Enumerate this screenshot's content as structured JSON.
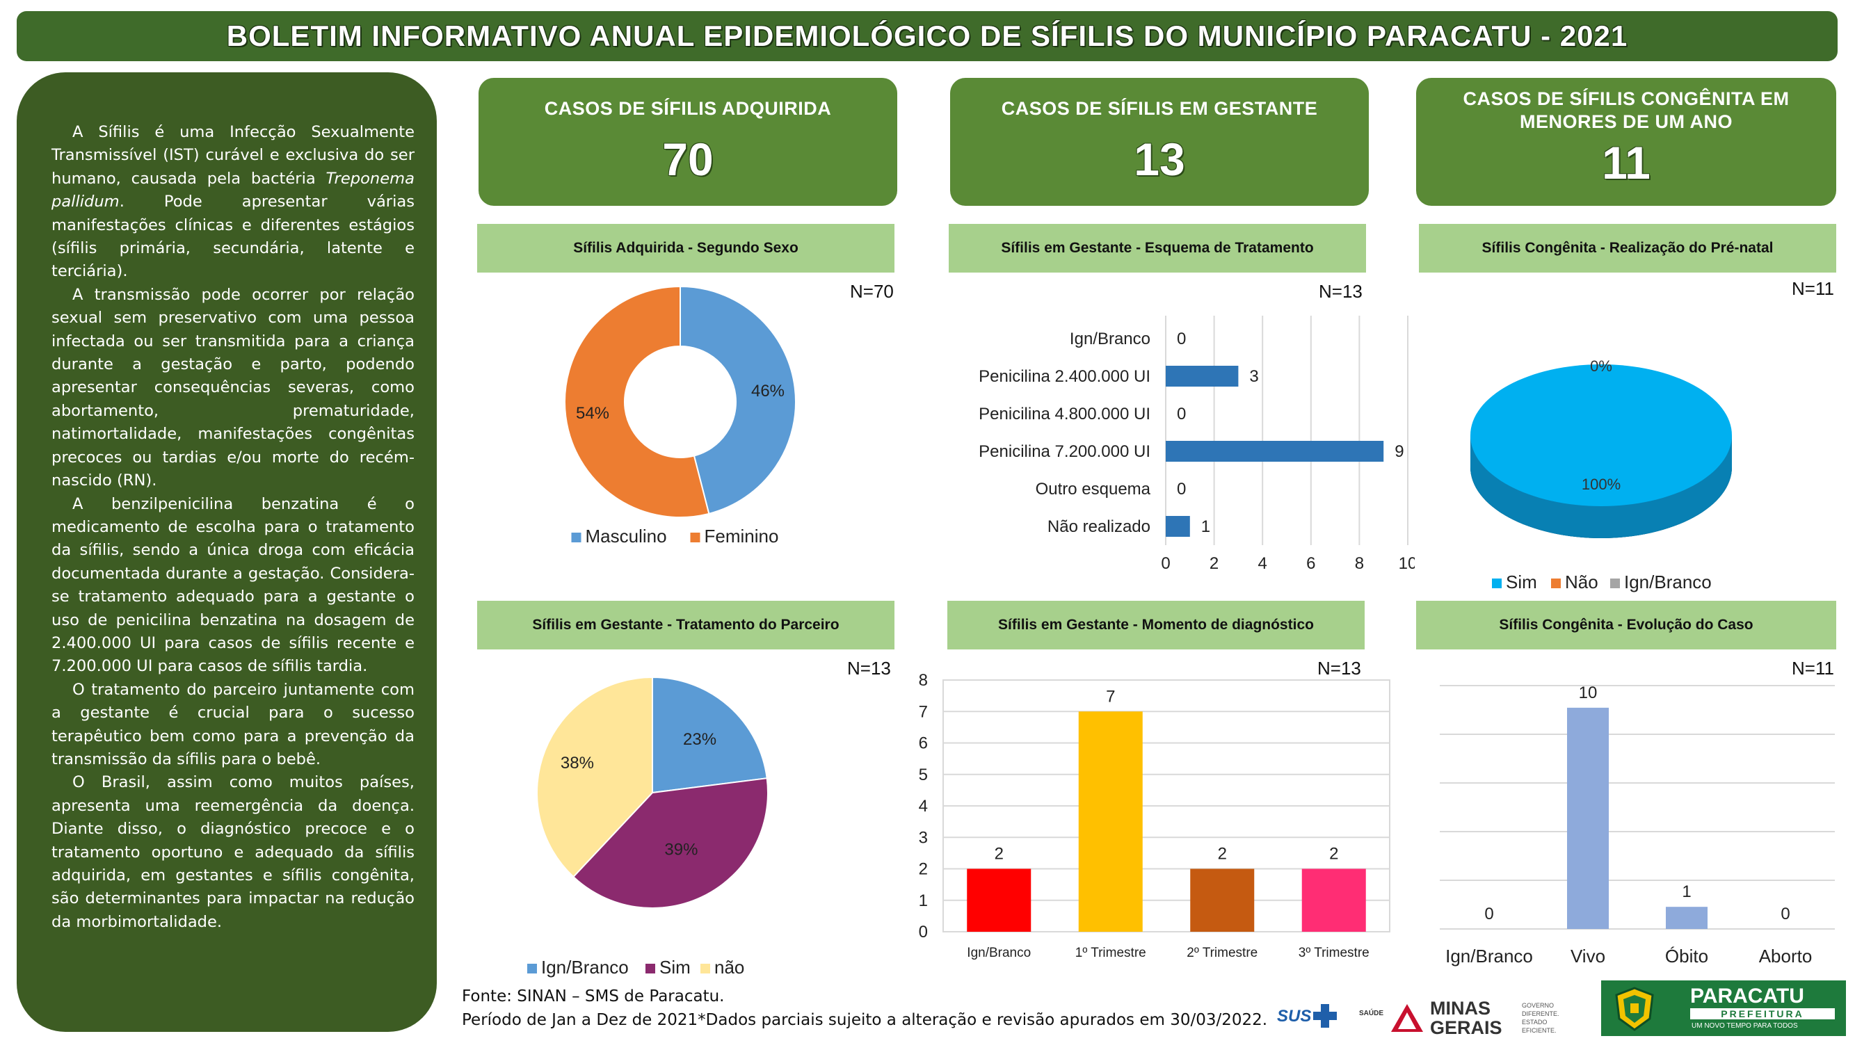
{
  "header": {
    "title": "BOLETIM INFORMATIVO ANUAL EPIDEMIOLÓGICO DE SÍFILIS DO MUNICÍPIO PARACATU - 2021"
  },
  "sidebar": {
    "paragraphs": [
      "A Sífilis é uma Infecção Sexualmente Transmissível (IST) curável e exclusiva do ser humano, causada pela bactéria Treponema pallidum. Pode apresentar várias manifestações clínicas e diferentes estágios (sífilis primária, secundária, latente e terciária).",
      "A transmissão pode ocorrer por relação sexual sem preservativo com uma pessoa infectada ou ser transmitida para a criança durante a gestação e parto, podendo apresentar consequências severas, como abortamento, prematuridade, natimortalidade, manifestações congênitas precoces ou tardias e/ou morte do recém-nascido (RN).",
      "A benzilpenicilina benzatina é o medicamento de escolha para o tratamento da sífilis, sendo a única droga com eficácia documentada durante a gestação. Considera-se tratamento adequado para a gestante o uso de penicilina benzatina na dosagem de 2.400.000 UI para casos de sífilis recente e 7.200.000 UI para casos de sífilis tardia.",
      "O tratamento do parceiro juntamente com a gestante é crucial para o sucesso terapêutico bem como para a prevenção da transmissão da sífilis para o bebê.",
      "O Brasil, assim como muitos países, apresenta uma reemergência da doença. Diante disso, o diagnóstico precoce e o tratamento oportuno e adequado da sífilis adquirida, em gestantes e sífilis congênita, são determinantes para impactar na redução da morbimortalidade."
    ]
  },
  "kpis": [
    {
      "label": "CASOS DE SÍFILIS ADQUIRIDA",
      "value": "70"
    },
    {
      "label": "CASOS DE SÍFILIS EM GESTANTE",
      "value": "13"
    },
    {
      "label": "CASOS DE SÍFILIS CONGÊNITA EM MENORES DE UM ANO",
      "value": "11"
    }
  ],
  "chart_data": [
    {
      "type": "pie",
      "title": "Sífilis Adquirida - Segundo Sexo",
      "n": "N=70",
      "donut": true,
      "categories": [
        "Masculino",
        "Feminino"
      ],
      "values": [
        46,
        54
      ],
      "labels": [
        "46%",
        "54%"
      ],
      "colors": [
        "#5b9bd5",
        "#ed7d31"
      ],
      "legend": "bottom"
    },
    {
      "type": "bar",
      "orientation": "horizontal",
      "title": "Sífilis em Gestante - Esquema de Tratamento",
      "n": "N=13",
      "categories": [
        "Ign/Branco",
        "Penicilina  2.400.000 UI",
        "Penicilina  4.800.000 UI",
        "Penicilina   7.200.000 UI",
        "Outro esquema",
        "Não realizado"
      ],
      "values": [
        0,
        3,
        0,
        9,
        0,
        1
      ],
      "xlim": [
        0,
        10
      ],
      "ticks": [
        0,
        2,
        4,
        6,
        8,
        10
      ],
      "color": "#2e75b6",
      "grid": "vertical"
    },
    {
      "type": "pie",
      "title": "Sífilis Congênita - Realização do Pré-natal",
      "n": "N=11",
      "style3d": true,
      "categories": [
        "Sim",
        "Não",
        "Ign/Branco"
      ],
      "values": [
        100,
        0,
        0
      ],
      "labels": [
        "100%",
        "0%"
      ],
      "colors": [
        "#00b0f0",
        "#ed7d31",
        "#a5a5a5"
      ],
      "legend": "bottom"
    },
    {
      "type": "pie",
      "title": "Sífilis em Gestante - Tratamento do Parceiro",
      "n": "N=13",
      "categories": [
        "Ign/Branco",
        "Sim",
        "não"
      ],
      "values": [
        23,
        39,
        38
      ],
      "labels": [
        "23%",
        "39%",
        "38%"
      ],
      "colors": [
        "#5b9bd5",
        "#8b2a6e",
        "#ffe699"
      ],
      "legend": "bottom"
    },
    {
      "type": "bar",
      "title": "Sífilis em Gestante - Momento de diagnóstico",
      "n": "N=13",
      "categories": [
        "Ign/Branco",
        "1º Trimestre",
        "2º Trimestre",
        "3º Trimestre"
      ],
      "values": [
        2,
        7,
        2,
        2
      ],
      "ylim": [
        0,
        8
      ],
      "ticks": [
        0,
        1,
        2,
        3,
        4,
        5,
        6,
        7,
        8
      ],
      "colors": [
        "#ff0000",
        "#ffc000",
        "#c55a11",
        "#ff2d74"
      ],
      "grid": "horizontal"
    },
    {
      "type": "bar",
      "title": "Sífilis Congênita - Evolução do Caso",
      "n": "N=11",
      "categories": [
        "Ign/Branco",
        "Vivo",
        "Óbito",
        "Aborto"
      ],
      "values": [
        0,
        10,
        1,
        0
      ],
      "ylim": [
        0,
        11
      ],
      "color": "#8eaadb",
      "grid": "horizontal"
    }
  ],
  "footer": {
    "source": "Fonte: SINAN – SMS de  Paracatu.",
    "period": "Período de Jan a Dez de 2021*Dados  parciais  sujeito a alteração e revisão apurados em 30/03/2022."
  },
  "logos": {
    "sus": "SUS",
    "saude": "SAÚDE",
    "mg_line1": "MINAS",
    "mg_line2": "GERAIS",
    "mg_tag1": "GOVERNO",
    "mg_tag2": "DIFERENTE.",
    "mg_tag3": "ESTADO",
    "mg_tag4": "EFICIENTE.",
    "paracatu": "PARACATU",
    "prefeitura": "PREFEITURA",
    "slogan": "UM NOVO TEMPO PARA TODOS"
  }
}
